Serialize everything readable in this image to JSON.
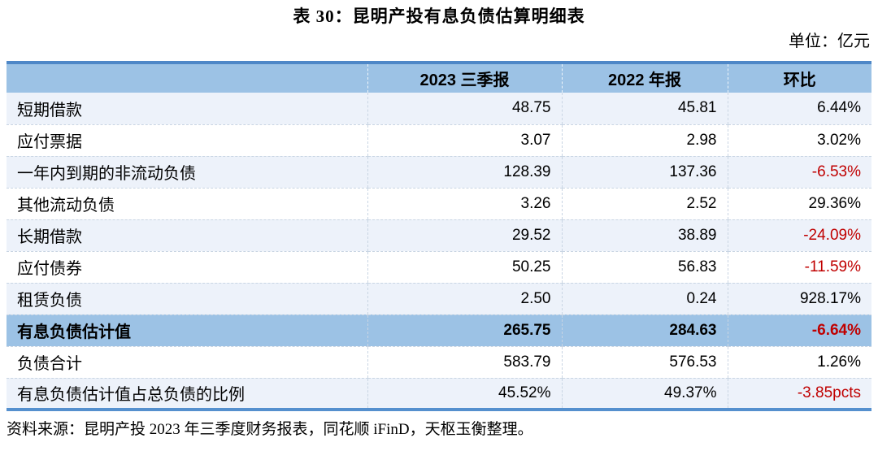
{
  "title": "表 30：昆明产投有息负债估算明细表",
  "unit_label": "单位：亿元",
  "colors": {
    "header_bg": "#9CC2E5",
    "band_bg": "#EDF2FA",
    "highlight_bg": "#9CC2E5",
    "negative_text": "#C00000",
    "top_border": "#4E87C7",
    "bottom_border": "#5590CE"
  },
  "table": {
    "columns": [
      "",
      "2023 三季报",
      "2022 年报",
      "环比"
    ],
    "rows": [
      {
        "label": "短期借款",
        "q3_2023": "48.75",
        "fy2022": "45.81",
        "qoq": "6.44%",
        "qoq_negative": false,
        "style": "band"
      },
      {
        "label": "应付票据",
        "q3_2023": "3.07",
        "fy2022": "2.98",
        "qoq": "3.02%",
        "qoq_negative": false,
        "style": "white"
      },
      {
        "label": "一年内到期的非流动负债",
        "q3_2023": "128.39",
        "fy2022": "137.36",
        "qoq": "-6.53%",
        "qoq_negative": true,
        "style": "band"
      },
      {
        "label": "其他流动负债",
        "q3_2023": "3.26",
        "fy2022": "2.52",
        "qoq": "29.36%",
        "qoq_negative": false,
        "style": "white"
      },
      {
        "label": "长期借款",
        "q3_2023": "29.52",
        "fy2022": "38.89",
        "qoq": "-24.09%",
        "qoq_negative": true,
        "style": "band"
      },
      {
        "label": "应付债券",
        "q3_2023": "50.25",
        "fy2022": "56.83",
        "qoq": "-11.59%",
        "qoq_negative": true,
        "style": "white"
      },
      {
        "label": "租赁负债",
        "q3_2023": "2.50",
        "fy2022": "0.24",
        "qoq": "928.17%",
        "qoq_negative": false,
        "style": "band"
      },
      {
        "label": "有息负债估计值",
        "q3_2023": "265.75",
        "fy2022": "284.63",
        "qoq": "-6.64%",
        "qoq_negative": true,
        "style": "highlight"
      },
      {
        "label": "负债合计",
        "q3_2023": "583.79",
        "fy2022": "576.53",
        "qoq": "1.26%",
        "qoq_negative": false,
        "style": "white"
      },
      {
        "label": "有息负债估计值占总负债的比例",
        "q3_2023": "45.52%",
        "fy2022": "49.37%",
        "qoq": "-3.85pcts",
        "qoq_negative": true,
        "style": "band"
      }
    ]
  },
  "source": "资料来源：昆明产投 2023 年三季度财务报表，同花顺 iFinD，天枢玉衡整理。"
}
